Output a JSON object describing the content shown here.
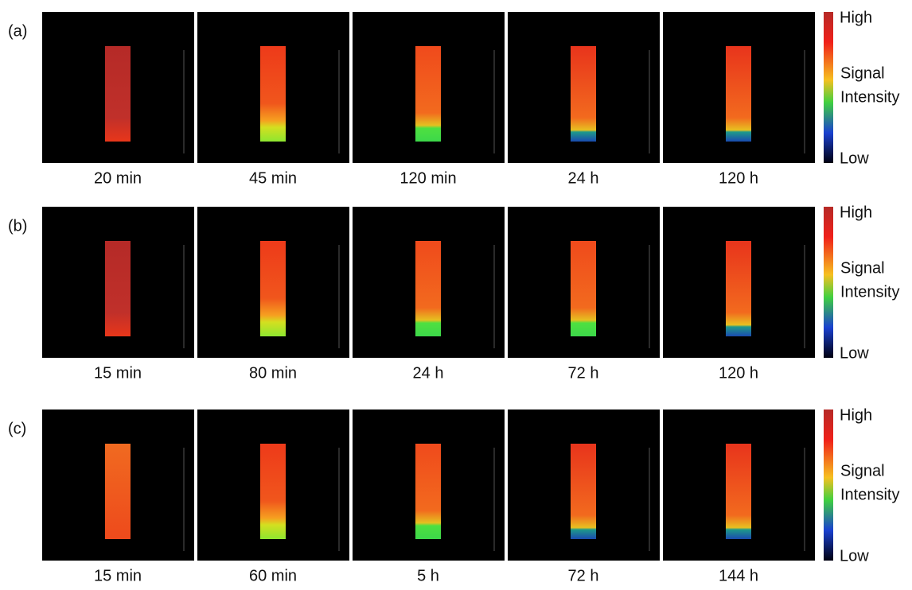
{
  "rows": [
    {
      "label": "(a)",
      "panels": [
        "20 min",
        "45 min",
        "120 min",
        "24 h",
        "120 h"
      ],
      "colorbar": {
        "high": "High",
        "title": [
          "Signal",
          "Intensity"
        ],
        "low": "Low"
      }
    },
    {
      "label": "(b)",
      "panels": [
        "15 min",
        "80 min",
        "24 h",
        "72 h",
        "120 h"
      ],
      "colorbar": {
        "high": "High",
        "title": [
          "Signal",
          "Intensity"
        ],
        "low": "Low"
      }
    },
    {
      "label": "(c)",
      "panels": [
        "15 min",
        "60 min",
        "5 h",
        "72 h",
        "144 h"
      ],
      "colorbar": {
        "high": "High",
        "title": [
          "Signal",
          "Intensity"
        ],
        "low": "Low"
      }
    }
  ]
}
